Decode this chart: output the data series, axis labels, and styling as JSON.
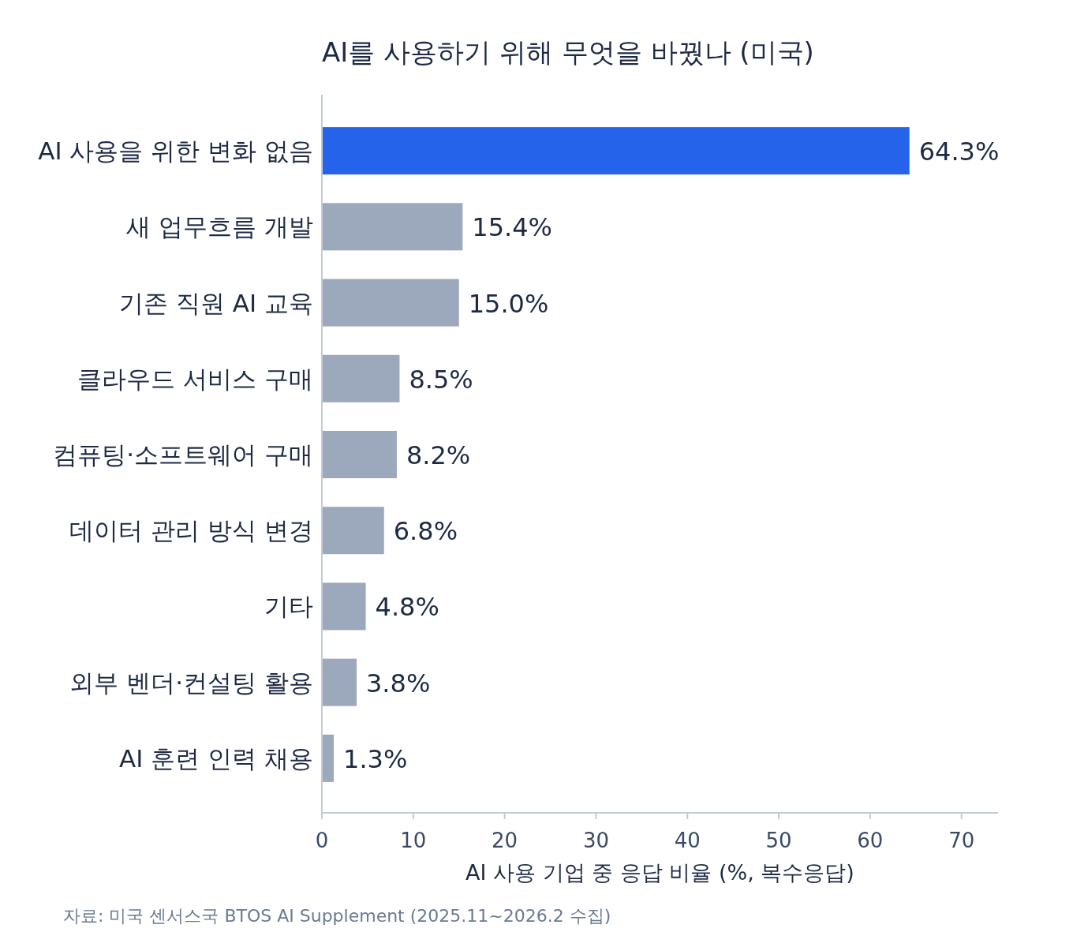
{
  "chart_data": {
    "type": "bar",
    "orientation": "horizontal",
    "title": "AI를 사용하기 위해 무엇을 바꿨나 (미국)",
    "xlabel": "AI 사용 기업 중 응답 비율 (%, 복수응답)",
    "categories": [
      "AI 사용을 위한 변화 없음",
      "새 업무흐름 개발",
      "기존 직원 AI 교육",
      "클라우드 서비스 구매",
      "컴퓨팅·소프트웨어 구매",
      "데이터 관리 방식 변경",
      "기타",
      "외부 벤더·컨설팅 활용",
      "AI 훈련 인력 채용"
    ],
    "values": [
      64.3,
      15.4,
      15.0,
      8.5,
      8.2,
      6.8,
      4.8,
      3.8,
      1.3
    ],
    "value_labels": [
      "64.3%",
      "15.4%",
      "15.0%",
      "8.5%",
      "8.2%",
      "6.8%",
      "4.8%",
      "3.8%",
      "1.3%"
    ],
    "colors": [
      "#2563eb",
      "#9ca8bb",
      "#9ca8bb",
      "#9ca8bb",
      "#9ca8bb",
      "#9ca8bb",
      "#9ca8bb",
      "#9ca8bb",
      "#9ca8bb"
    ],
    "xlim": [
      0,
      74
    ],
    "xticks": [
      0,
      10,
      20,
      30,
      40,
      50,
      60,
      70
    ],
    "annotations": [
      "자료: 미국 센서스국 BTOS AI Supplement (2025.11~2026.2 수집)"
    ]
  }
}
